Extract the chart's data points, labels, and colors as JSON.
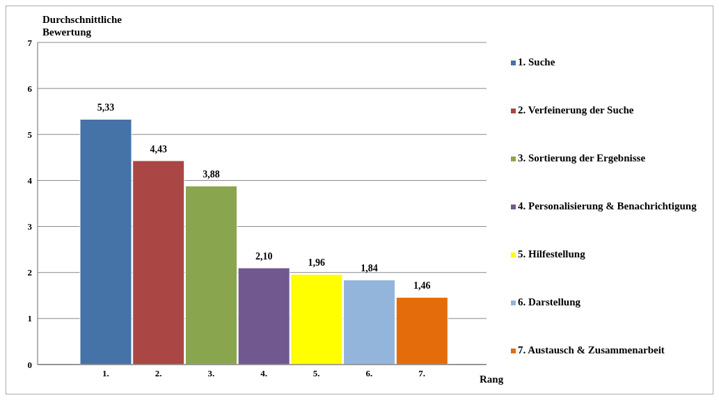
{
  "chart_data": {
    "type": "bar",
    "ylabel": "Durchschnittliche Bewertung",
    "xlabel": "Rang",
    "categories": [
      "1.",
      "2.",
      "3.",
      "4.",
      "5.",
      "6.",
      "7."
    ],
    "stacked": true,
    "ylim": [
      0,
      7
    ],
    "yticks": [
      0,
      1,
      2,
      3,
      4,
      5,
      6,
      7
    ],
    "grid": "y",
    "legend": "right",
    "series": [
      {
        "name": "1. Suche",
        "color": "#4572a7",
        "values": [
          5.33,
          null,
          null,
          null,
          null,
          null,
          null
        ],
        "value_labels": [
          "5,33",
          null,
          null,
          null,
          null,
          null,
          null
        ]
      },
      {
        "name": "2. Verfeinerung der Suche",
        "color": "#aa4643",
        "values": [
          null,
          4.43,
          null,
          null,
          null,
          null,
          null
        ],
        "value_labels": [
          null,
          "4,43",
          null,
          null,
          null,
          null,
          null
        ]
      },
      {
        "name": "3. Sortierung der Ergebnisse",
        "color": "#89a54e",
        "values": [
          null,
          null,
          3.88,
          null,
          null,
          null,
          null
        ],
        "value_labels": [
          null,
          null,
          "3,88",
          null,
          null,
          null,
          null
        ]
      },
      {
        "name": "4. Personalisierung & Benachrichtigung",
        "color": "#71588f",
        "values": [
          null,
          null,
          null,
          2.1,
          null,
          null,
          null
        ],
        "value_labels": [
          null,
          null,
          null,
          "2,10",
          null,
          null,
          null
        ]
      },
      {
        "name": "5. Hilfestellung",
        "color": "#ffff00",
        "values": [
          null,
          null,
          null,
          null,
          1.96,
          null,
          null
        ],
        "value_labels": [
          null,
          null,
          null,
          null,
          "1,96",
          null,
          null
        ]
      },
      {
        "name": "6. Darstellung",
        "color": "#93b5db",
        "values": [
          null,
          null,
          null,
          null,
          null,
          1.84,
          null
        ],
        "value_labels": [
          null,
          null,
          null,
          null,
          null,
          "1,84",
          null
        ]
      },
      {
        "name": "7. Austausch & Zusammenarbeit",
        "color": "#e46c0a",
        "values": [
          null,
          null,
          null,
          null,
          null,
          null,
          1.46
        ],
        "value_labels": [
          null,
          null,
          null,
          null,
          null,
          null,
          "1,46"
        ]
      }
    ]
  }
}
